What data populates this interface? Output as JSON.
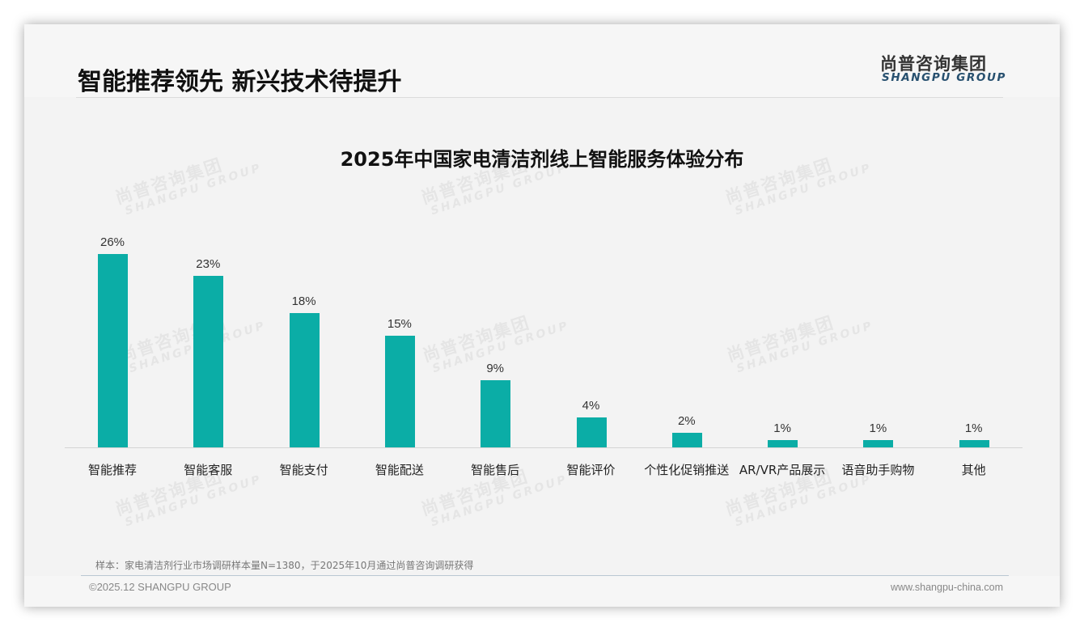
{
  "header": {
    "title": "智能推荐领先 新兴技术待提升",
    "logo_cn": "尚普咨询集团",
    "logo_en": "SHANGPU GROUP"
  },
  "watermark": {
    "cn": "尚普咨询集团",
    "en": "SHANGPU GROUP"
  },
  "colors": {
    "bar": "#0bada6",
    "logo_en": "#27506f",
    "background": "#f3f3f3"
  },
  "chart_data": {
    "type": "bar",
    "title": "2025年中国家电清洁剂线上智能服务体验分布",
    "categories": [
      "智能推荐",
      "智能客服",
      "智能支付",
      "智能配送",
      "智能售后",
      "智能评价",
      "个性化促销推送",
      "AR/VR产品展示",
      "语音助手购物",
      "其他"
    ],
    "values": [
      26,
      23,
      18,
      15,
      9,
      4,
      2,
      1,
      1,
      1
    ],
    "value_labels": [
      "26%",
      "23%",
      "18%",
      "15%",
      "9%",
      "4%",
      "2%",
      "1%",
      "1%",
      "1%"
    ],
    "unit": "%",
    "xlabel": "",
    "ylabel": "",
    "ylim": [
      0,
      30
    ],
    "grid": false,
    "legend": "none",
    "y_axis_visible": false,
    "bar_color": "#0bada6"
  },
  "footer": {
    "note": "样本：家电清洁剂行业市场调研样本量N=1380，于2025年10月通过尚普咨询调研获得",
    "copyright": "©2025.12 SHANGPU GROUP",
    "website": "www.shangpu-china.com"
  }
}
